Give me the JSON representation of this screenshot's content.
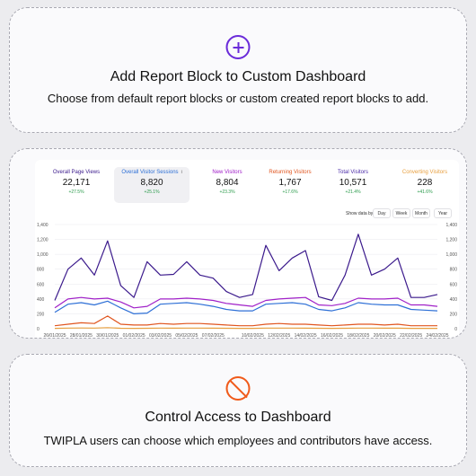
{
  "blocks": {
    "add_report": {
      "icon": "plus-circle-icon",
      "accent": "#6a2bd9",
      "title": "Add Report Block to Custom Dashboard",
      "description": "Choose from default report blocks or custom created report blocks to add."
    },
    "control_access": {
      "icon": "ban-icon",
      "accent": "#f05a1a",
      "title": "Control Access to Dashboard",
      "description": "TWIPLA users can choose which employees and contributors have access."
    }
  },
  "dashboard": {
    "metrics": [
      {
        "label": "Overall Page Views",
        "value": "22,171",
        "change": "+27.5%",
        "color": "#3b1a8c",
        "active": false
      },
      {
        "label": "Overall Visitor Sessions",
        "value": "8,820",
        "change": "+25.1%",
        "color": "#2d6fd6",
        "active": true
      },
      {
        "label": "New Visitors",
        "value": "8,804",
        "change": "+23.3%",
        "color": "#a020c8",
        "active": false
      },
      {
        "label": "Returning Visitors",
        "value": "1,767",
        "change": "+17.6%",
        "color": "#e0551f",
        "active": false
      },
      {
        "label": "Total Visitors",
        "value": "10,571",
        "change": "+21.4%",
        "color": "#4a2aa8",
        "active": false
      },
      {
        "label": "Converting Visitors",
        "value": "228",
        "change": "+41.6%",
        "color": "#e8a040",
        "active": false
      }
    ],
    "info_icon": "i",
    "show_data_label": "Show data by:",
    "granularity": [
      "Day",
      "Week",
      "Month",
      "Year"
    ]
  },
  "chart_data": {
    "type": "line",
    "y_ticks": [
      "1,400",
      "1,200",
      "1,000",
      "800",
      "600",
      "400",
      "200",
      "0"
    ],
    "ylim": [
      0,
      1400
    ],
    "x_tick_labels": [
      "26/01/2025",
      "28/01/2025",
      "30/01/2025",
      "01/02/2025",
      "03/02/2025",
      "05/02/2025",
      "07/02/2025",
      "10/02/2025",
      "12/02/2025",
      "14/02/2025",
      "16/02/2025",
      "18/02/2025",
      "20/02/2025",
      "22/02/2025",
      "24/02/2025"
    ],
    "x_tick_index": [
      0,
      2,
      4,
      6,
      8,
      10,
      12,
      15,
      17,
      19,
      21,
      23,
      25,
      27,
      29
    ],
    "grid": true,
    "series": [
      {
        "color": "#3b1a8c",
        "values": [
          380,
          800,
          950,
          720,
          1180,
          580,
          420,
          900,
          720,
          730,
          900,
          720,
          680,
          500,
          420,
          460,
          1120,
          780,
          950,
          1050,
          430,
          380,
          720,
          1270,
          720,
          800,
          950,
          420,
          420,
          460
        ]
      },
      {
        "color": "#a020c8",
        "values": [
          280,
          400,
          420,
          400,
          410,
          360,
          280,
          300,
          400,
          400,
          410,
          400,
          380,
          340,
          320,
          300,
          380,
          400,
          410,
          420,
          320,
          310,
          340,
          410,
          400,
          400,
          410,
          320,
          320,
          300
        ]
      },
      {
        "color": "#2d6fd6",
        "values": [
          220,
          330,
          350,
          320,
          370,
          280,
          200,
          210,
          330,
          340,
          350,
          330,
          300,
          260,
          240,
          240,
          330,
          340,
          350,
          330,
          260,
          240,
          280,
          350,
          330,
          320,
          320,
          260,
          250,
          240
        ]
      },
      {
        "color": "#e0551f",
        "values": [
          40,
          60,
          80,
          70,
          170,
          60,
          50,
          50,
          70,
          60,
          70,
          70,
          60,
          50,
          40,
          40,
          60,
          70,
          60,
          60,
          50,
          40,
          50,
          60,
          60,
          50,
          60,
          40,
          40,
          40
        ]
      },
      {
        "color": "#e8a040",
        "values": [
          5,
          8,
          10,
          8,
          15,
          6,
          5,
          6,
          8,
          7,
          8,
          8,
          7,
          6,
          5,
          5,
          8,
          8,
          8,
          7,
          6,
          5,
          6,
          8,
          8,
          7,
          7,
          5,
          5,
          5
        ]
      }
    ]
  }
}
